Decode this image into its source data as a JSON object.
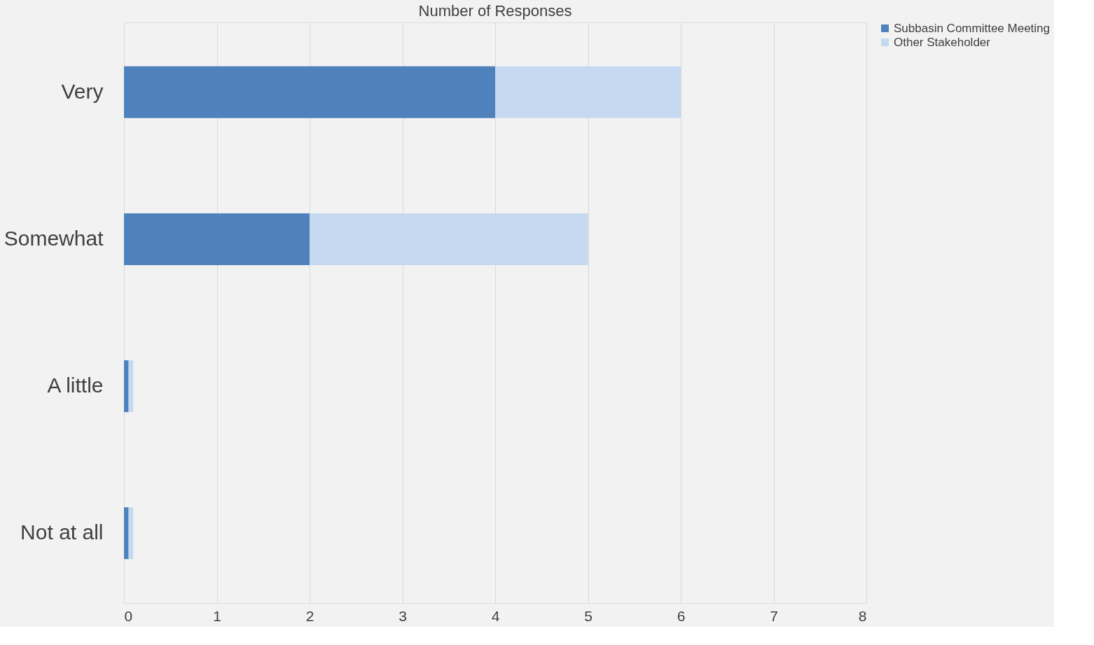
{
  "chart_data": {
    "type": "bar",
    "orientation": "horizontal",
    "stacked": true,
    "title": "Number of Responses",
    "categories": [
      "Very",
      "Somewhat",
      "A little",
      "Not at all"
    ],
    "series": [
      {
        "name": "Subbasin Committee Meeting",
        "color": "#4f81bd",
        "values": [
          4,
          2,
          0.05,
          0.05
        ]
      },
      {
        "name": "Other Stakeholder",
        "color": "#c6d9f1",
        "values": [
          2,
          3,
          0.05,
          0.05
        ]
      }
    ],
    "xlim": [
      0,
      8
    ],
    "xticks": [
      0,
      1,
      2,
      3,
      4,
      5,
      6,
      7,
      8
    ],
    "grid": "x",
    "legend": "right"
  }
}
